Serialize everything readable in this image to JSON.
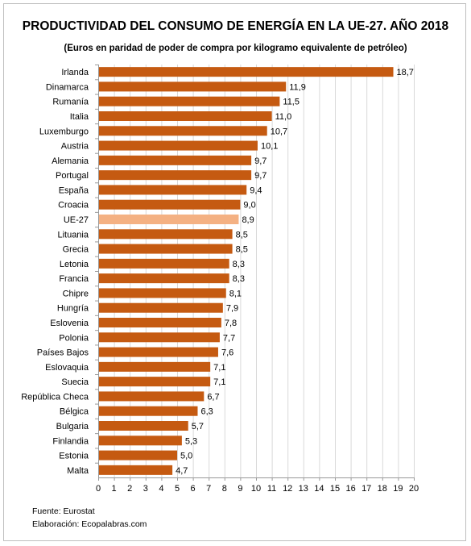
{
  "chart_data": {
    "type": "bar",
    "orientation": "horizontal",
    "title": "PRODUCTIVIDAD DEL CONSUMO DE ENERGÍA EN LA UE-27. AÑO 2018",
    "subtitle": "(Euros en paridad de poder de compra por kilogramo equivalente de petróleo)",
    "categories": [
      "Irlanda",
      "Dinamarca",
      "Rumanía",
      "Italia",
      "Luxemburgo",
      "Austria",
      "Alemania",
      "Portugal",
      "España",
      "Croacia",
      "UE-27",
      "Lituania",
      "Grecia",
      "Letonia",
      "Francia",
      "Chipre",
      "Hungría",
      "Eslovenia",
      "Polonia",
      "Países Bajos",
      "Eslovaquia",
      "Suecia",
      "República Checa",
      "Bélgica",
      "Bulgaria",
      "Finlandia",
      "Estonia",
      "Malta"
    ],
    "values": [
      18.7,
      11.9,
      11.5,
      11.0,
      10.7,
      10.1,
      9.7,
      9.7,
      9.4,
      9.0,
      8.9,
      8.5,
      8.5,
      8.3,
      8.3,
      8.1,
      7.9,
      7.8,
      7.7,
      7.6,
      7.1,
      7.1,
      6.7,
      6.3,
      5.7,
      5.3,
      5.0,
      4.7
    ],
    "value_labels": [
      "18,7",
      "11,9",
      "11,5",
      "11,0",
      "10,7",
      "10,1",
      "9,7",
      "9,7",
      "9,4",
      "9,0",
      "8,9",
      "8,5",
      "8,5",
      "8,3",
      "8,3",
      "8,1",
      "7,9",
      "7,8",
      "7,7",
      "7,6",
      "7,1",
      "7,1",
      "6,7",
      "6,3",
      "5,7",
      "5,3",
      "5,0",
      "4,7"
    ],
    "highlight_category": "UE-27",
    "xlim": [
      0,
      20
    ],
    "xticks": [
      0,
      1,
      2,
      3,
      4,
      5,
      6,
      7,
      8,
      9,
      10,
      11,
      12,
      13,
      14,
      15,
      16,
      17,
      18,
      19,
      20
    ],
    "grid": true,
    "colors": {
      "bar": "#c55a11",
      "highlight": "#f4b183",
      "grid": "#d9d9d9"
    }
  },
  "footer": {
    "source": "Fuente: Eurostat",
    "credit": "Elaboración: Ecopalabras.com"
  }
}
